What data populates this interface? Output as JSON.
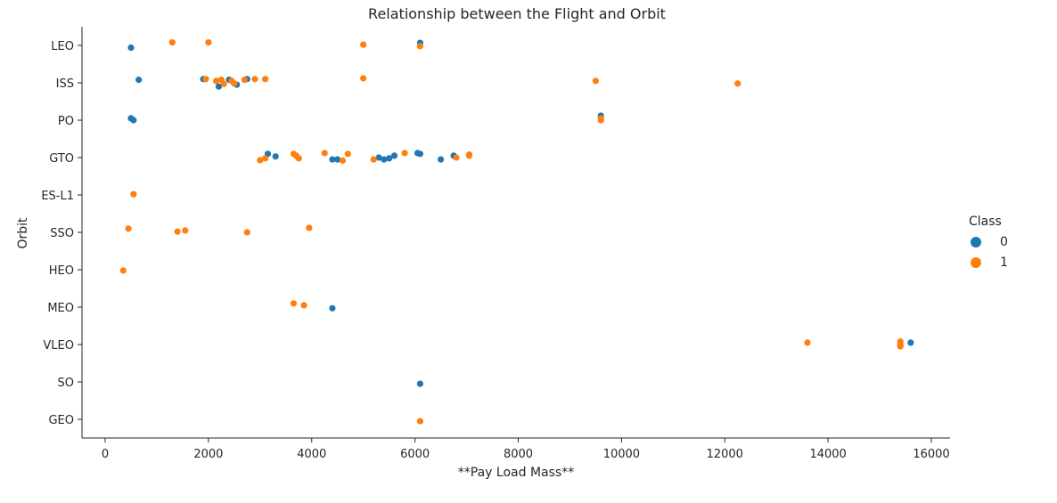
{
  "chart_data": {
    "type": "scatter",
    "title": "Relationship between the Flight and Orbit",
    "xlabel": "**Pay Load Mass**",
    "ylabel": "Orbit",
    "xlim": [
      -400,
      16400
    ],
    "xticks": [
      0,
      2000,
      4000,
      6000,
      8000,
      10000,
      12000,
      14000,
      16000
    ],
    "categories": [
      "LEO",
      "ISS",
      "PO",
      "GTO",
      "ES-L1",
      "SSO",
      "HEO",
      "MEO",
      "VLEO",
      "SO",
      "GEO"
    ],
    "grid": false,
    "legend": {
      "title": "Class",
      "placement": "right",
      "entries": [
        "0",
        "1"
      ]
    },
    "series": [
      {
        "name": "0",
        "color": "#1f77b4",
        "points": [
          {
            "x": 500,
            "y": "LEO",
            "j": 0.06
          },
          {
            "x": 6100,
            "y": "LEO",
            "j": -0.07
          },
          {
            "x": 1900,
            "y": "ISS",
            "j": -0.1
          },
          {
            "x": 650,
            "y": "ISS",
            "j": -0.08
          },
          {
            "x": 2200,
            "y": "ISS",
            "j": 0.1
          },
          {
            "x": 2400,
            "y": "ISS",
            "j": -0.08
          },
          {
            "x": 2550,
            "y": "ISS",
            "j": 0.05
          },
          {
            "x": 2750,
            "y": "ISS",
            "j": -0.1
          },
          {
            "x": 500,
            "y": "PO",
            "j": -0.05
          },
          {
            "x": 550,
            "y": "PO",
            "j": 0.0
          },
          {
            "x": 9600,
            "y": "PO",
            "j": -0.12
          },
          {
            "x": 3150,
            "y": "GTO",
            "j": -0.1
          },
          {
            "x": 3300,
            "y": "GTO",
            "j": -0.03
          },
          {
            "x": 4400,
            "y": "GTO",
            "j": 0.05
          },
          {
            "x": 4500,
            "y": "GTO",
            "j": 0.05
          },
          {
            "x": 5300,
            "y": "GTO",
            "j": 0.0
          },
          {
            "x": 5400,
            "y": "GTO",
            "j": 0.05
          },
          {
            "x": 5500,
            "y": "GTO",
            "j": 0.02
          },
          {
            "x": 5600,
            "y": "GTO",
            "j": -0.05
          },
          {
            "x": 6050,
            "y": "GTO",
            "j": -0.12
          },
          {
            "x": 6100,
            "y": "GTO",
            "j": -0.1
          },
          {
            "x": 6500,
            "y": "GTO",
            "j": 0.05
          },
          {
            "x": 6750,
            "y": "GTO",
            "j": -0.05
          },
          {
            "x": 4400,
            "y": "MEO",
            "j": 0.03
          },
          {
            "x": 15600,
            "y": "VLEO",
            "j": -0.05
          },
          {
            "x": 6100,
            "y": "SO",
            "j": 0.05
          }
        ]
      },
      {
        "name": "1",
        "color": "#ff7f0e",
        "points": [
          {
            "x": 1300,
            "y": "LEO",
            "j": -0.08
          },
          {
            "x": 2000,
            "y": "LEO",
            "j": -0.08
          },
          {
            "x": 5000,
            "y": "LEO",
            "j": -0.02
          },
          {
            "x": 6100,
            "y": "LEO",
            "j": 0.02
          },
          {
            "x": 1950,
            "y": "ISS",
            "j": -0.1
          },
          {
            "x": 2150,
            "y": "ISS",
            "j": -0.05
          },
          {
            "x": 2250,
            "y": "ISS",
            "j": -0.08
          },
          {
            "x": 2300,
            "y": "ISS",
            "j": 0.03
          },
          {
            "x": 2450,
            "y": "ISS",
            "j": -0.05
          },
          {
            "x": 2500,
            "y": "ISS",
            "j": 0.02
          },
          {
            "x": 2700,
            "y": "ISS",
            "j": -0.08
          },
          {
            "x": 2900,
            "y": "ISS",
            "j": -0.1
          },
          {
            "x": 3100,
            "y": "ISS",
            "j": -0.1
          },
          {
            "x": 5000,
            "y": "ISS",
            "j": -0.12
          },
          {
            "x": 9500,
            "y": "ISS",
            "j": -0.05
          },
          {
            "x": 12250,
            "y": "ISS",
            "j": 0.02
          },
          {
            "x": 9600,
            "y": "PO",
            "j": -0.05
          },
          {
            "x": 9600,
            "y": "PO",
            "j": 0.0
          },
          {
            "x": 3000,
            "y": "GTO",
            "j": 0.07
          },
          {
            "x": 3100,
            "y": "GTO",
            "j": 0.02
          },
          {
            "x": 3650,
            "y": "GTO",
            "j": -0.1
          },
          {
            "x": 3700,
            "y": "GTO",
            "j": -0.05
          },
          {
            "x": 3750,
            "y": "GTO",
            "j": 0.02
          },
          {
            "x": 4250,
            "y": "GTO",
            "j": -0.12
          },
          {
            "x": 4600,
            "y": "GTO",
            "j": 0.08
          },
          {
            "x": 4700,
            "y": "GTO",
            "j": -0.1
          },
          {
            "x": 5200,
            "y": "GTO",
            "j": 0.05
          },
          {
            "x": 5800,
            "y": "GTO",
            "j": -0.12
          },
          {
            "x": 6800,
            "y": "GTO",
            "j": 0.0
          },
          {
            "x": 7050,
            "y": "GTO",
            "j": -0.05
          },
          {
            "x": 7050,
            "y": "GTO",
            "j": -0.08
          },
          {
            "x": 550,
            "y": "ES-L1",
            "j": -0.02
          },
          {
            "x": 450,
            "y": "SSO",
            "j": -0.1
          },
          {
            "x": 1400,
            "y": "SSO",
            "j": -0.02
          },
          {
            "x": 1550,
            "y": "SSO",
            "j": -0.05
          },
          {
            "x": 2750,
            "y": "SSO",
            "j": 0.0
          },
          {
            "x": 3950,
            "y": "SSO",
            "j": -0.12
          },
          {
            "x": 350,
            "y": "HEO",
            "j": 0.02
          },
          {
            "x": 3650,
            "y": "MEO",
            "j": -0.1
          },
          {
            "x": 3850,
            "y": "MEO",
            "j": -0.05
          },
          {
            "x": 13600,
            "y": "VLEO",
            "j": -0.05
          },
          {
            "x": 15400,
            "y": "VLEO",
            "j": -0.08
          },
          {
            "x": 15400,
            "y": "VLEO",
            "j": 0.0
          },
          {
            "x": 15400,
            "y": "VLEO",
            "j": 0.05
          },
          {
            "x": 6100,
            "y": "GEO",
            "j": 0.05
          }
        ]
      }
    ]
  }
}
